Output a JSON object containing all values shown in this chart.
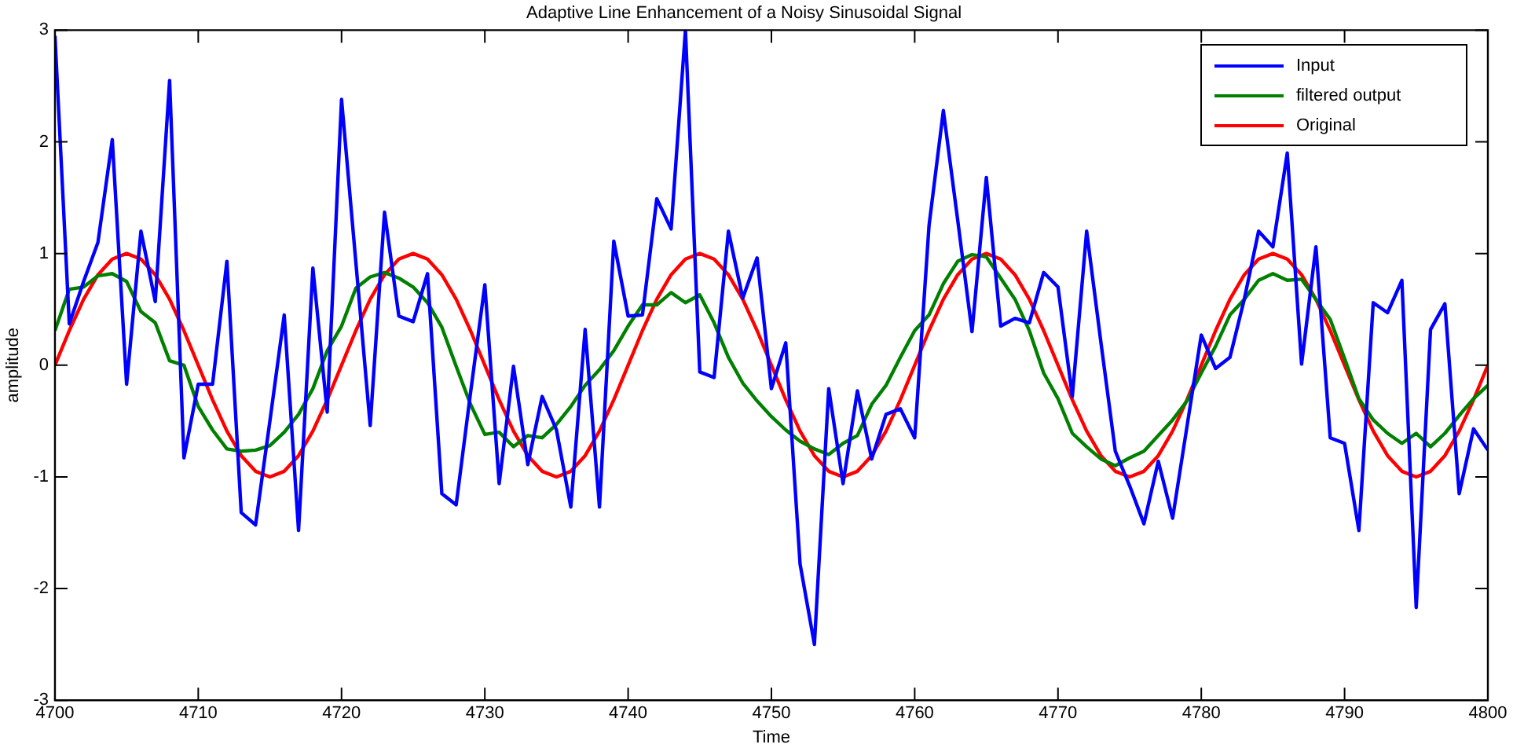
{
  "chart_data": {
    "type": "line",
    "title": "Adaptive Line Enhancement of a Noisy Sinusoidal Signal",
    "xlabel": "Time",
    "ylabel": "amplitude",
    "x": [
      4700,
      4701,
      4702,
      4703,
      4704,
      4705,
      4706,
      4707,
      4708,
      4709,
      4710,
      4711,
      4712,
      4713,
      4714,
      4715,
      4716,
      4717,
      4718,
      4719,
      4720,
      4721,
      4722,
      4723,
      4724,
      4725,
      4726,
      4727,
      4728,
      4729,
      4730,
      4731,
      4732,
      4733,
      4734,
      4735,
      4736,
      4737,
      4738,
      4739,
      4740,
      4741,
      4742,
      4743,
      4744,
      4745,
      4746,
      4747,
      4748,
      4749,
      4750,
      4751,
      4752,
      4753,
      4754,
      4755,
      4756,
      4757,
      4758,
      4759,
      4760,
      4761,
      4762,
      4763,
      4764,
      4765,
      4766,
      4767,
      4768,
      4769,
      4770,
      4771,
      4772,
      4773,
      4774,
      4775,
      4776,
      4777,
      4778,
      4779,
      4780,
      4781,
      4782,
      4783,
      4784,
      4785,
      4786,
      4787,
      4788,
      4789,
      4790,
      4791,
      4792,
      4793,
      4794,
      4795,
      4796,
      4797,
      4798,
      4799,
      4800
    ],
    "series": [
      {
        "name": "Input",
        "color": "#0000ff",
        "values": [
          2.95,
          0.37,
          0.75,
          1.1,
          2.02,
          -0.17,
          1.2,
          0.57,
          2.55,
          -0.83,
          -0.17,
          -0.17,
          0.93,
          -1.32,
          -1.43,
          -0.5,
          0.45,
          -1.48,
          0.87,
          -0.42,
          2.38,
          0.92,
          -0.54,
          1.37,
          0.44,
          0.39,
          0.82,
          -1.15,
          -1.25,
          -0.25,
          0.72,
          -1.06,
          -0.01,
          -0.89,
          -0.28,
          -0.58,
          -1.27,
          0.32,
          -1.27,
          1.11,
          0.44,
          0.45,
          1.49,
          1.22,
          3,
          -0.06,
          -0.11,
          1.2,
          0.6,
          0.96,
          -0.21,
          0.2,
          -1.78,
          -2.5,
          -0.21,
          -1.06,
          -0.23,
          -0.84,
          -0.44,
          -0.39,
          -0.65,
          1.25,
          2.28,
          1.3,
          0.3,
          1.68,
          0.35,
          0.42,
          0.38,
          0.83,
          0.7,
          -0.28,
          1.2,
          0.2,
          -0.77,
          -1.08,
          -1.42,
          -0.86,
          -1.37,
          -0.55,
          0.27,
          -0.03,
          0.07,
          0.59,
          1.2,
          1.06,
          1.9,
          0.01,
          1.06,
          -0.65,
          -0.7,
          -1.48,
          0.56,
          0.47,
          0.76,
          -2.17,
          0.32,
          0.55,
          -1.15,
          -0.57,
          -0.76
        ]
      },
      {
        "name": "filtered output",
        "color": "#008000",
        "values": [
          0.31,
          0.68,
          0.7,
          0.8,
          0.82,
          0.75,
          0.48,
          0.38,
          0.04,
          0,
          -0.37,
          -0.58,
          -0.75,
          -0.77,
          -0.76,
          -0.72,
          -0.6,
          -0.44,
          -0.21,
          0.13,
          0.35,
          0.69,
          0.79,
          0.83,
          0.78,
          0.7,
          0.56,
          0.34,
          -0.01,
          -0.35,
          -0.62,
          -0.6,
          -0.73,
          -0.63,
          -0.65,
          -0.53,
          -0.37,
          -0.18,
          -0.04,
          0.13,
          0.35,
          0.54,
          0.54,
          0.65,
          0.56,
          0.63,
          0.38,
          0.07,
          -0.16,
          -0.32,
          -0.46,
          -0.58,
          -0.68,
          -0.75,
          -0.8,
          -0.7,
          -0.63,
          -0.35,
          -0.18,
          0.07,
          0.31,
          0.45,
          0.73,
          0.93,
          0.99,
          0.97,
          0.78,
          0.59,
          0.31,
          -0.07,
          -0.3,
          -0.61,
          -0.73,
          -0.84,
          -0.9,
          -0.83,
          -0.77,
          -0.63,
          -0.49,
          -0.32,
          -0.07,
          0.17,
          0.45,
          0.59,
          0.76,
          0.82,
          0.76,
          0.77,
          0.59,
          0.41,
          0.06,
          -0.3,
          -0.49,
          -0.61,
          -0.7,
          -0.61,
          -0.73,
          -0.61,
          -0.45,
          -0.3,
          -0.18
        ]
      },
      {
        "name": "Original",
        "color": "#ff0000",
        "values": [
          0,
          0.31,
          0.59,
          0.81,
          0.95,
          1,
          0.95,
          0.81,
          0.59,
          0.31,
          0,
          -0.31,
          -0.59,
          -0.81,
          -0.95,
          -1,
          -0.95,
          -0.81,
          -0.59,
          -0.31,
          0,
          0.31,
          0.59,
          0.81,
          0.95,
          1,
          0.95,
          0.81,
          0.59,
          0.31,
          0,
          -0.31,
          -0.59,
          -0.81,
          -0.95,
          -1,
          -0.95,
          -0.81,
          -0.59,
          -0.31,
          0,
          0.31,
          0.59,
          0.81,
          0.95,
          1,
          0.95,
          0.81,
          0.59,
          0.31,
          0,
          -0.31,
          -0.59,
          -0.81,
          -0.95,
          -1,
          -0.95,
          -0.81,
          -0.59,
          -0.31,
          0,
          0.31,
          0.59,
          0.81,
          0.95,
          1,
          0.95,
          0.81,
          0.59,
          0.31,
          0,
          -0.31,
          -0.59,
          -0.81,
          -0.95,
          -1,
          -0.95,
          -0.81,
          -0.59,
          -0.31,
          0,
          0.31,
          0.59,
          0.81,
          0.95,
          1,
          0.95,
          0.81,
          0.59,
          0.31,
          0,
          -0.31,
          -0.59,
          -0.81,
          -0.95,
          -1,
          -0.95,
          -0.81,
          -0.59,
          -0.31,
          0
        ]
      }
    ],
    "xlim": [
      4700,
      4800
    ],
    "xticks": [
      4700,
      4710,
      4720,
      4730,
      4740,
      4750,
      4760,
      4770,
      4780,
      4790,
      4800
    ],
    "ylim": [
      -3,
      3
    ],
    "yticks": [
      -3,
      -2,
      -1,
      0,
      1,
      2,
      3
    ],
    "grid": false,
    "legend": "top right",
    "marker": "none",
    "line_style": "solid"
  }
}
